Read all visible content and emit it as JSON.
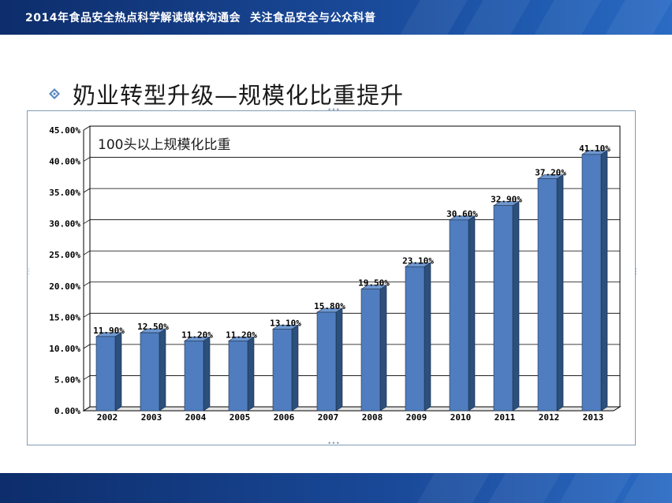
{
  "banner": {
    "title": "2014年食品安全热点科学解读媒体沟通会",
    "subtitle": "关注食品安全与公众科普"
  },
  "slide": {
    "heading": "奶业转型升级—规模化比重提升",
    "bullet_icon": "diamond-bullet-icon"
  },
  "colors": {
    "banner": "#1a4a9a",
    "bar_front": "#4f7dbf",
    "bar_side": "#2c4f7c",
    "bar_top": "#6f98d0"
  },
  "chart_data": {
    "type": "bar",
    "title": "100头以上规模化比重",
    "categories": [
      "2002",
      "2003",
      "2004",
      "2005",
      "2006",
      "2007",
      "2008",
      "2009",
      "2010",
      "2011",
      "2012",
      "2013"
    ],
    "values": [
      11.9,
      12.5,
      11.2,
      11.2,
      13.1,
      15.8,
      19.5,
      23.1,
      30.6,
      32.9,
      37.2,
      41.1
    ],
    "data_labels": [
      "11.90%",
      "12.50%",
      "11.20%",
      "11.20%",
      "13.10%",
      "15.80%",
      "19.50%",
      "23.10%",
      "30.60%",
      "32.90%",
      "37.20%",
      "41.10%"
    ],
    "yticks": [
      "0.00%",
      "5.00%",
      "10.00%",
      "15.00%",
      "20.00%",
      "25.00%",
      "30.00%",
      "35.00%",
      "40.00%",
      "45.00%"
    ],
    "ylim": [
      0,
      45
    ],
    "grid": true,
    "three_d": true
  }
}
